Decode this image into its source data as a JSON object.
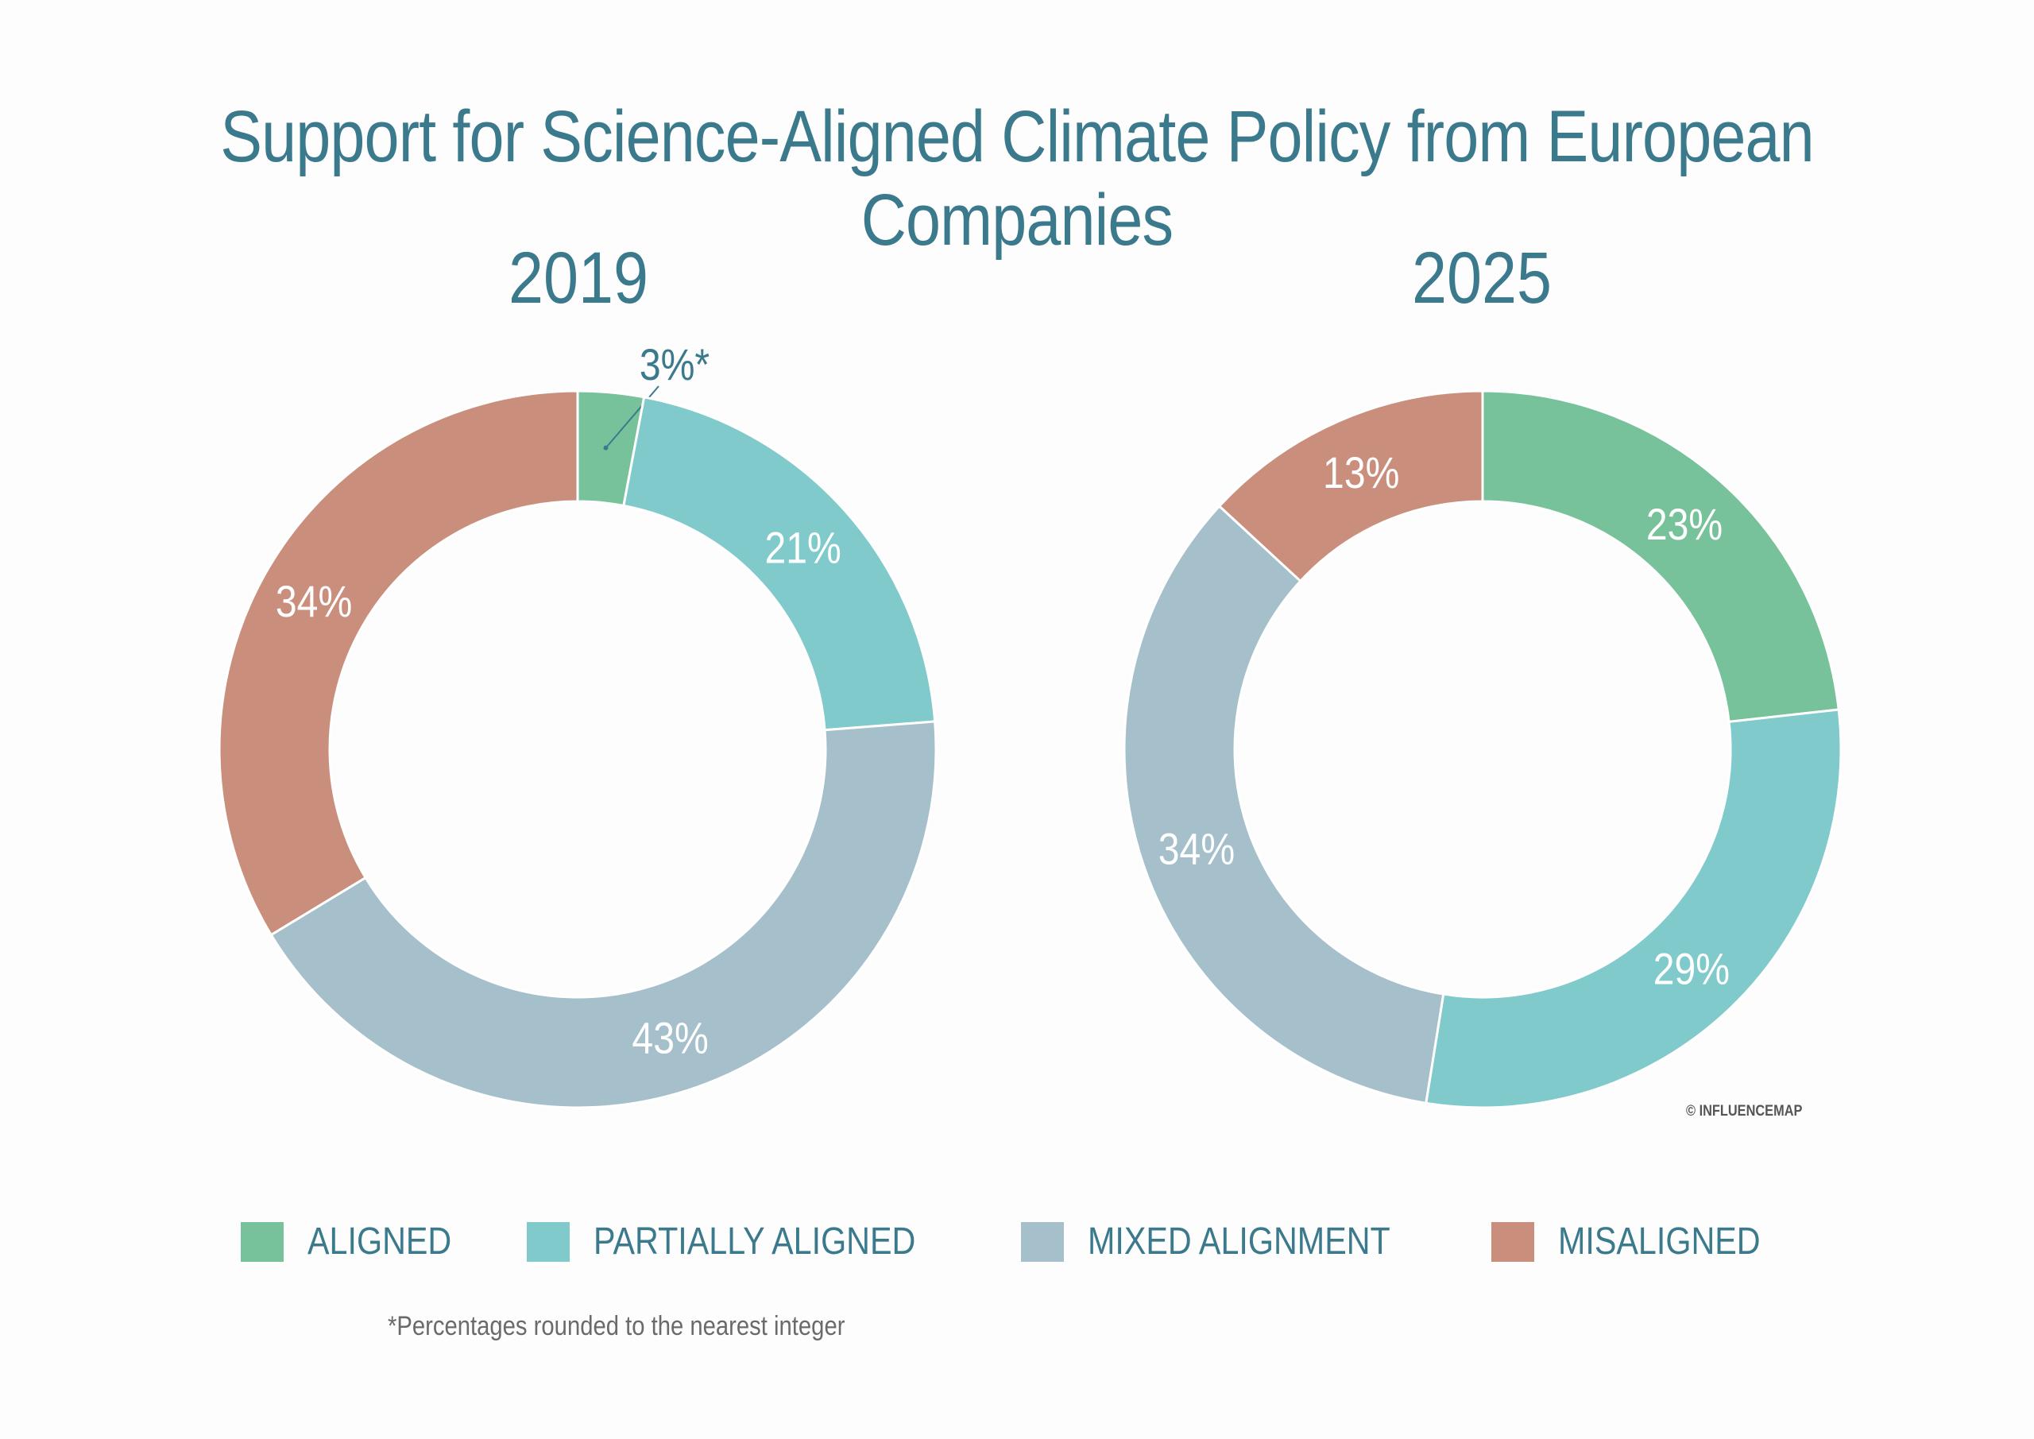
{
  "title": "Support for Science-Aligned Climate Policy from European Companies",
  "chart_data": [
    {
      "type": "donut",
      "year": "2019",
      "segments": [
        {
          "name": "ALIGNED",
          "value": 3,
          "label": "3%*",
          "color": "#78c29b"
        },
        {
          "name": "PARTIALLY ALIGNED",
          "value": 21,
          "label": "21%",
          "color": "#80cacb"
        },
        {
          "name": "MIXED ALIGNMENT",
          "value": 43,
          "label": "43%",
          "color": "#a5bfcb"
        },
        {
          "name": "MISALIGNED",
          "value": 34,
          "label": "34%",
          "color": "#c98e7c"
        }
      ]
    },
    {
      "type": "donut",
      "year": "2025",
      "segments": [
        {
          "name": "ALIGNED",
          "value": 23,
          "label": "23%",
          "color": "#78c29b"
        },
        {
          "name": "PARTIALLY ALIGNED",
          "value": 29,
          "label": "29%",
          "color": "#80cacb"
        },
        {
          "name": "MIXED ALIGNMENT",
          "value": 34,
          "label": "34%",
          "color": "#a5bfcb"
        },
        {
          "name": "MISALIGNED",
          "value": 13,
          "label": "13%",
          "color": "#c98e7c"
        }
      ]
    }
  ],
  "legend": [
    {
      "label": "ALIGNED",
      "color": "#78c29b"
    },
    {
      "label": "PARTIALLY ALIGNED",
      "color": "#80cacb"
    },
    {
      "label": "MIXED ALIGNMENT",
      "color": "#a5bfcb"
    },
    {
      "label": "MISALIGNED",
      "color": "#c98e7c"
    }
  ],
  "footnote": "*Percentages rounded to the nearest integer",
  "credit": "© INFLUENCEMAP"
}
